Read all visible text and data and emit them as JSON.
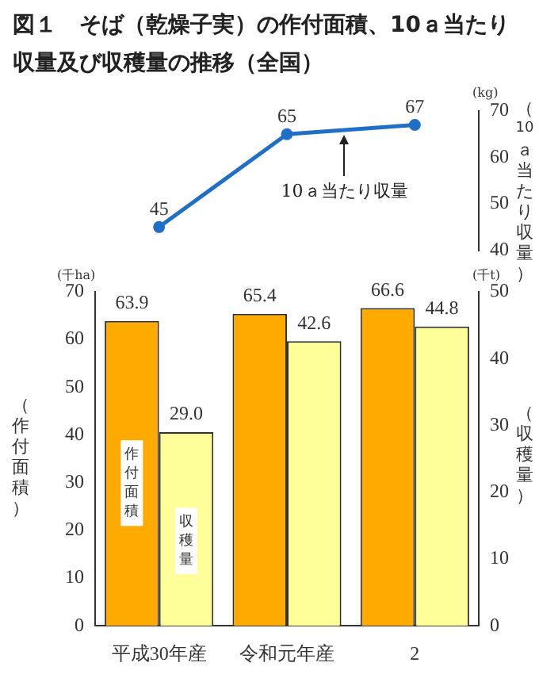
{
  "chart_data": [
    {
      "type": "line",
      "title": "図１　そば（乾燥子実）の作付面積、10ａ当たり収量及び収穫量の推移（全国）",
      "ylabel": "（10ａ当たり収量）",
      "categories": [
        null,
        null,
        null
      ],
      "series": [
        {
          "color": "#1f6fc8",
          "values": [
            45,
            65,
            67
          ]
        }
      ],
      "ylim": [
        40,
        70
      ],
      "yticks": [
        40,
        50,
        60,
        70
      ],
      "grid": false,
      "legend": false,
      "marker": "circle",
      "line_style": "solid",
      "data_labels": true,
      "tick_labels": "y",
      "annotations": [
        "(kg)",
        "10ａ当たり収量"
      ]
    },
    {
      "type": "bar",
      "ylabel": "（作付面積）",
      "y2label": "（収穫量）",
      "categories": [
        "平成30年産",
        "令和元年産",
        "2"
      ],
      "series": [
        {
          "name": "作付面積",
          "color": "#ffaa00",
          "values": [
            63.9,
            65.4,
            66.6
          ],
          "value_labels": [
            "63.9",
            "65.4",
            "66.6"
          ]
        },
        {
          "name": "収穫量",
          "color": "#ffff99",
          "axis": "y2",
          "values": [
            29.0,
            42.6,
            44.8
          ],
          "value_labels": [
            "29.0",
            "42.6",
            "44.8"
          ]
        }
      ],
      "ylim": [
        0,
        70
      ],
      "yticks": [
        0,
        10,
        20,
        30,
        40,
        50,
        60,
        70
      ],
      "y2lim": [
        0,
        50
      ],
      "y2ticks": [
        0,
        10,
        20,
        30,
        40,
        50
      ],
      "grid": false,
      "legend": false,
      "annotations": [
        "(千ha)",
        "(千t)"
      ]
    }
  ]
}
